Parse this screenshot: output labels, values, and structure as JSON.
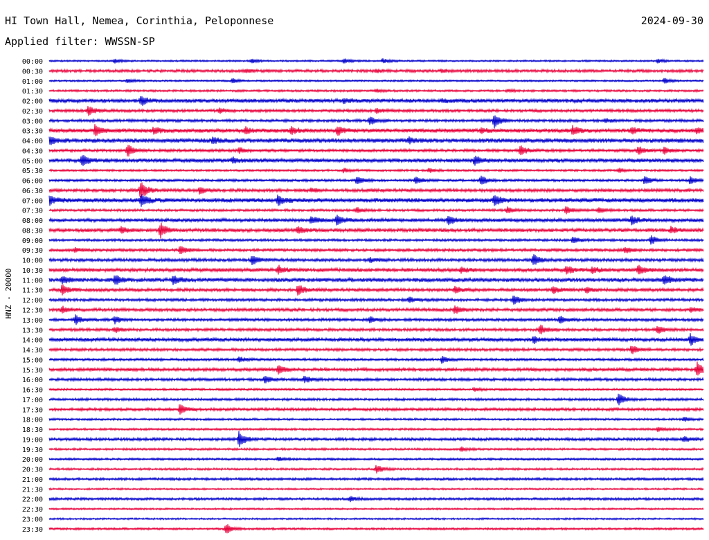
{
  "header": {
    "station": "HI Town Hall, Nemea, Corinthia, Peloponnese",
    "date": "2024-09-30",
    "filter": "Applied filter: WWSSN-SP"
  },
  "chart_data": {
    "type": "line",
    "title": "HI Town Hall, Nemea, Corinthia, Peloponnese",
    "ylabel": "HNZ - 20000",
    "colors": {
      "blue": "#0000cc",
      "red": "#e8003a"
    },
    "categories": [
      "00:00",
      "00:30",
      "01:00",
      "01:30",
      "02:00",
      "02:30",
      "03:00",
      "03:30",
      "04:00",
      "04:30",
      "05:00",
      "05:30",
      "06:00",
      "06:30",
      "07:00",
      "07:30",
      "08:00",
      "08:30",
      "09:00",
      "09:30",
      "10:00",
      "10:30",
      "11:00",
      "11:30",
      "12:00",
      "12:30",
      "13:00",
      "13:30",
      "14:00",
      "14:30",
      "15:00",
      "15:30",
      "16:00",
      "16:30",
      "17:00",
      "17:30",
      "18:00",
      "18:30",
      "19:00",
      "19:30",
      "20:00",
      "20:30",
      "21:00",
      "21:30",
      "22:00",
      "22:30",
      "23:00",
      "23:30"
    ],
    "series": [
      {
        "noise": 1.0,
        "events": [
          [
            0.1,
            3
          ],
          [
            0.31,
            3
          ],
          [
            0.45,
            4
          ],
          [
            0.51,
            3
          ],
          [
            0.93,
            3
          ]
        ]
      },
      {
        "noise": 1.6,
        "events": [
          [
            0.3,
            2
          ],
          [
            0.5,
            2
          ],
          [
            0.6,
            2
          ]
        ]
      },
      {
        "noise": 1.0,
        "events": [
          [
            0.12,
            3
          ],
          [
            0.28,
            3
          ],
          [
            0.94,
            4
          ]
        ]
      },
      {
        "noise": 1.2,
        "events": [
          [
            0.5,
            2
          ],
          [
            0.7,
            2
          ]
        ]
      },
      {
        "noise": 2.2,
        "events": [
          [
            0.14,
            7
          ],
          [
            0.45,
            3
          ],
          [
            0.6,
            2
          ]
        ]
      },
      {
        "noise": 1.6,
        "events": [
          [
            0.06,
            8
          ],
          [
            0.26,
            4
          ],
          [
            0.5,
            3
          ]
        ]
      },
      {
        "noise": 1.6,
        "events": [
          [
            0.49,
            6
          ],
          [
            0.68,
            10
          ],
          [
            0.85,
            3
          ]
        ]
      },
      {
        "noise": 2.2,
        "events": [
          [
            0.07,
            8
          ],
          [
            0.16,
            5
          ],
          [
            0.3,
            4
          ],
          [
            0.37,
            5
          ],
          [
            0.44,
            7
          ],
          [
            0.66,
            3
          ],
          [
            0.8,
            6
          ],
          [
            0.89,
            4
          ],
          [
            0.99,
            4
          ]
        ]
      },
      {
        "noise": 2.4,
        "events": [
          [
            0.0,
            6
          ],
          [
            0.25,
            4
          ],
          [
            0.55,
            4
          ]
        ]
      },
      {
        "noise": 1.6,
        "events": [
          [
            0.12,
            9
          ],
          [
            0.29,
            4
          ],
          [
            0.72,
            7
          ],
          [
            0.9,
            6
          ],
          [
            0.94,
            5
          ]
        ]
      },
      {
        "noise": 2.2,
        "events": [
          [
            0.05,
            8
          ],
          [
            0.28,
            4
          ],
          [
            0.65,
            7
          ]
        ]
      },
      {
        "noise": 1.2,
        "events": [
          [
            0.45,
            3
          ],
          [
            0.58,
            3
          ],
          [
            0.87,
            3
          ]
        ]
      },
      {
        "noise": 1.4,
        "events": [
          [
            0.47,
            6
          ],
          [
            0.56,
            5
          ],
          [
            0.66,
            7
          ],
          [
            0.91,
            6
          ],
          [
            0.98,
            6
          ]
        ]
      },
      {
        "noise": 1.8,
        "events": [
          [
            0.14,
            13
          ],
          [
            0.23,
            5
          ],
          [
            0.4,
            3
          ]
        ]
      },
      {
        "noise": 2.4,
        "events": [
          [
            0.0,
            7
          ],
          [
            0.14,
            9
          ],
          [
            0.35,
            7
          ],
          [
            0.68,
            7
          ]
        ]
      },
      {
        "noise": 1.4,
        "events": [
          [
            0.47,
            4
          ],
          [
            0.7,
            4
          ],
          [
            0.79,
            6
          ],
          [
            0.84,
            4
          ]
        ]
      },
      {
        "noise": 2.0,
        "events": [
          [
            0.4,
            5
          ],
          [
            0.44,
            8
          ],
          [
            0.61,
            7
          ],
          [
            0.89,
            6
          ]
        ]
      },
      {
        "noise": 2.0,
        "events": [
          [
            0.11,
            4
          ],
          [
            0.17,
            11
          ],
          [
            0.38,
            5
          ],
          [
            0.95,
            4
          ]
        ]
      },
      {
        "noise": 1.4,
        "events": [
          [
            0.8,
            5
          ],
          [
            0.92,
            7
          ]
        ]
      },
      {
        "noise": 1.6,
        "events": [
          [
            0.04,
            3
          ],
          [
            0.2,
            7
          ],
          [
            0.88,
            5
          ]
        ]
      },
      {
        "noise": 1.8,
        "events": [
          [
            0.31,
            7
          ],
          [
            0.49,
            3
          ],
          [
            0.74,
            9
          ]
        ]
      },
      {
        "noise": 2.0,
        "events": [
          [
            0.35,
            6
          ],
          [
            0.63,
            4
          ],
          [
            0.79,
            6
          ],
          [
            0.83,
            5
          ],
          [
            0.9,
            7
          ]
        ]
      },
      {
        "noise": 2.2,
        "events": [
          [
            0.02,
            5
          ],
          [
            0.1,
            7
          ],
          [
            0.19,
            6
          ],
          [
            0.94,
            7
          ]
        ]
      },
      {
        "noise": 1.8,
        "events": [
          [
            0.02,
            7
          ],
          [
            0.38,
            9
          ],
          [
            0.62,
            5
          ],
          [
            0.77,
            5
          ],
          [
            0.82,
            4
          ]
        ]
      },
      {
        "noise": 1.6,
        "events": [
          [
            0.55,
            4
          ],
          [
            0.71,
            7
          ]
        ]
      },
      {
        "noise": 1.8,
        "events": [
          [
            0.02,
            5
          ],
          [
            0.62,
            6
          ],
          [
            0.98,
            4
          ]
        ]
      },
      {
        "noise": 1.6,
        "events": [
          [
            0.04,
            7
          ],
          [
            0.1,
            5
          ],
          [
            0.49,
            5
          ],
          [
            0.78,
            5
          ]
        ]
      },
      {
        "noise": 1.6,
        "events": [
          [
            0.1,
            4
          ],
          [
            0.75,
            7
          ],
          [
            0.93,
            6
          ]
        ]
      },
      {
        "noise": 2.0,
        "events": [
          [
            0.74,
            5
          ],
          [
            0.98,
            8
          ]
        ]
      },
      {
        "noise": 1.6,
        "events": [
          [
            0.89,
            6
          ]
        ]
      },
      {
        "noise": 1.4,
        "events": [
          [
            0.29,
            4
          ],
          [
            0.6,
            5
          ]
        ]
      },
      {
        "noise": 1.8,
        "events": [
          [
            0.35,
            7
          ],
          [
            0.99,
            10
          ]
        ]
      },
      {
        "noise": 1.6,
        "events": [
          [
            0.33,
            5
          ],
          [
            0.39,
            5
          ]
        ]
      },
      {
        "noise": 1.2,
        "events": [
          [
            0.65,
            3
          ]
        ]
      },
      {
        "noise": 1.4,
        "events": [
          [
            0.87,
            9
          ]
        ]
      },
      {
        "noise": 1.6,
        "events": [
          [
            0.2,
            8
          ]
        ]
      },
      {
        "noise": 1.2,
        "events": [
          [
            0.97,
            3
          ]
        ]
      },
      {
        "noise": 1.2,
        "events": [
          [
            0.93,
            3
          ]
        ]
      },
      {
        "noise": 1.6,
        "events": [
          [
            0.29,
            12
          ],
          [
            0.97,
            4
          ]
        ]
      },
      {
        "noise": 1.2,
        "events": [
          [
            0.63,
            3
          ]
        ]
      },
      {
        "noise": 1.2,
        "events": [
          [
            0.35,
            3
          ]
        ]
      },
      {
        "noise": 1.2,
        "events": [
          [
            0.5,
            6
          ]
        ]
      },
      {
        "noise": 1.4,
        "events": []
      },
      {
        "noise": 1.0,
        "events": []
      },
      {
        "noise": 1.4,
        "events": [
          [
            0.46,
            3
          ]
        ]
      },
      {
        "noise": 1.0,
        "events": []
      },
      {
        "noise": 1.0,
        "events": []
      },
      {
        "noise": 1.2,
        "events": [
          [
            0.27,
            8
          ]
        ]
      }
    ]
  }
}
